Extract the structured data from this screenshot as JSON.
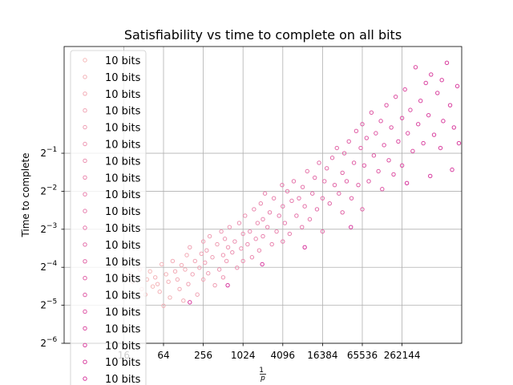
{
  "chart_data": {
    "type": "scatter",
    "title": "Satisfiability vs time to complete on all bits",
    "xlabel": "1/p",
    "ylabel": "Time to complete",
    "x_scale": "log2",
    "y_scale": "log2",
    "xlim": [
      2,
      2097152
    ],
    "ylim": [
      0.015625,
      3.5
    ],
    "x_ticks": [
      {
        "value": 16,
        "label": "16"
      },
      {
        "value": 64,
        "label": "64"
      },
      {
        "value": 256,
        "label": "256"
      },
      {
        "value": 1024,
        "label": "1024"
      },
      {
        "value": 4096,
        "label": "4096"
      },
      {
        "value": 16384,
        "label": "16384"
      },
      {
        "value": 65536,
        "label": "65536"
      },
      {
        "value": 262144,
        "label": "262144"
      }
    ],
    "y_ticks": [
      {
        "value": 0.015625,
        "base": "2",
        "exp": "−6"
      },
      {
        "value": 0.03125,
        "base": "2",
        "exp": "−5"
      },
      {
        "value": 0.0625,
        "base": "2",
        "exp": "−4"
      },
      {
        "value": 0.125,
        "base": "2",
        "exp": "−3"
      },
      {
        "value": 0.25,
        "base": "2",
        "exp": "−2"
      },
      {
        "value": 0.5,
        "base": "2",
        "exp": "−1"
      }
    ],
    "grid": true,
    "legend_position": "upper-left",
    "marker": "hollow-circle",
    "color_low": "#f5b8b8",
    "color_high": "#d6349c",
    "series": [
      {
        "name": "10 bits",
        "points": [
          [
            20,
            0.055
          ],
          [
            22,
            0.048
          ],
          [
            28,
            0.06
          ],
          [
            30,
            0.042
          ],
          [
            34,
            0.038
          ],
          [
            36,
            0.05
          ],
          [
            40,
            0.058
          ],
          [
            44,
            0.044
          ]
        ]
      },
      {
        "name": "10 bits",
        "points": [
          [
            48,
            0.052
          ],
          [
            52,
            0.046
          ],
          [
            56,
            0.04
          ],
          [
            60,
            0.066
          ],
          [
            64,
            0.031
          ],
          [
            70,
            0.055
          ],
          [
            76,
            0.048
          ],
          [
            80,
            0.036
          ]
        ]
      },
      {
        "name": "10 bits",
        "points": [
          [
            88,
            0.07
          ],
          [
            96,
            0.058
          ],
          [
            104,
            0.05
          ],
          [
            112,
            0.042
          ],
          [
            120,
            0.065
          ],
          [
            128,
            0.034
          ],
          [
            136,
            0.06
          ],
          [
            144,
            0.078
          ]
        ]
      },
      {
        "name": "10 bits",
        "points": [
          [
            152,
            0.046
          ],
          [
            160,
            0.09
          ],
          [
            176,
            0.055
          ],
          [
            192,
            0.07
          ],
          [
            208,
            0.038
          ],
          [
            224,
            0.062
          ],
          [
            240,
            0.08
          ],
          [
            256,
            0.05
          ]
        ]
      },
      {
        "name": "10 bits",
        "points": [
          [
            256,
            0.1
          ],
          [
            272,
            0.068
          ],
          [
            288,
            0.085
          ],
          [
            304,
            0.056
          ],
          [
            320,
            0.11
          ],
          [
            352,
            0.075
          ],
          [
            384,
            0.045
          ],
          [
            416,
            0.095
          ]
        ]
      },
      {
        "name": "10 bits",
        "points": [
          [
            448,
            0.06
          ],
          [
            480,
            0.12
          ],
          [
            512,
            0.078
          ],
          [
            512,
            0.052
          ],
          [
            544,
            0.105
          ],
          [
            576,
            0.07
          ],
          [
            608,
            0.09
          ],
          [
            640,
            0.13
          ]
        ]
      },
      {
        "name": "10 bits",
        "points": [
          [
            704,
            0.082
          ],
          [
            768,
            0.1
          ],
          [
            832,
            0.062
          ],
          [
            896,
            0.14
          ],
          [
            960,
            0.088
          ],
          [
            1024,
            0.115
          ],
          [
            1024,
            0.07
          ],
          [
            1100,
            0.16
          ]
        ]
      },
      {
        "name": "10 bits",
        "points": [
          [
            1200,
            0.095
          ],
          [
            1300,
            0.12
          ],
          [
            1400,
            0.075
          ],
          [
            1500,
            0.18
          ],
          [
            1600,
            0.105
          ],
          [
            1700,
            0.14
          ],
          [
            1800,
            0.085
          ],
          [
            1900,
            0.2
          ]
        ]
      },
      {
        "name": "10 bits",
        "points": [
          [
            2048,
            0.11
          ],
          [
            2048,
            0.15
          ],
          [
            2200,
            0.24
          ],
          [
            2400,
            0.13
          ],
          [
            2600,
            0.17
          ],
          [
            2800,
            0.095
          ],
          [
            3000,
            0.22
          ],
          [
            3300,
            0.12
          ]
        ]
      },
      {
        "name": "10 bits",
        "points": [
          [
            3600,
            0.16
          ],
          [
            4000,
            0.28
          ],
          [
            4096,
            0.1
          ],
          [
            4096,
            0.19
          ],
          [
            4400,
            0.14
          ],
          [
            4800,
            0.25
          ],
          [
            5200,
            0.115
          ],
          [
            5600,
            0.21
          ]
        ]
      },
      {
        "name": "10 bits",
        "points": [
          [
            6000,
            0.3
          ],
          [
            6600,
            0.16
          ],
          [
            7200,
            0.22
          ],
          [
            8000,
            0.13
          ],
          [
            8192,
            0.27
          ],
          [
            8800,
            0.19
          ],
          [
            9600,
            0.36
          ],
          [
            10500,
            0.15
          ]
        ]
      },
      {
        "name": "10 bits",
        "points": [
          [
            11500,
            0.24
          ],
          [
            12500,
            0.32
          ],
          [
            13500,
            0.18
          ],
          [
            14500,
            0.42
          ],
          [
            16384,
            0.22
          ],
          [
            16384,
            0.12
          ],
          [
            17500,
            0.3
          ],
          [
            19000,
            0.38
          ]
        ]
      },
      {
        "name": "10 bits",
        "points": [
          [
            21000,
            0.2
          ],
          [
            23000,
            0.46
          ],
          [
            25000,
            0.28
          ],
          [
            27000,
            0.55
          ],
          [
            29000,
            0.24
          ],
          [
            32768,
            0.35
          ],
          [
            32768,
            0.17
          ],
          [
            35000,
            0.5
          ]
        ]
      },
      {
        "name": "10 bits",
        "points": [
          [
            38000,
            0.3
          ],
          [
            41000,
            0.62
          ],
          [
            45000,
            0.22
          ],
          [
            49000,
            0.42
          ],
          [
            53000,
            0.75
          ],
          [
            57000,
            0.28
          ],
          [
            62000,
            0.55
          ],
          [
            65536,
            0.18
          ]
        ]
      },
      {
        "name": "10 bits",
        "points": [
          [
            65536,
            0.85
          ],
          [
            70000,
            0.4
          ],
          [
            76000,
            0.66
          ],
          [
            82000,
            0.3
          ],
          [
            90000,
            1.05
          ],
          [
            98000,
            0.48
          ],
          [
            105000,
            0.72
          ],
          [
            115000,
            0.36
          ]
        ]
      },
      {
        "name": "10 bits",
        "points": [
          [
            125000,
            0.9
          ],
          [
            131072,
            0.26
          ],
          [
            140000,
            0.58
          ],
          [
            152000,
            1.2
          ],
          [
            165000,
            0.44
          ],
          [
            180000,
            0.8
          ],
          [
            195000,
            0.34
          ],
          [
            210000,
            1.4
          ]
        ]
      },
      {
        "name": "10 bits",
        "points": [
          [
            230000,
            0.62
          ],
          [
            262144,
            0.95
          ],
          [
            262144,
            0.4
          ],
          [
            290000,
            1.6
          ],
          [
            320000,
            0.72
          ],
          [
            350000,
            1.1
          ],
          [
            380000,
            0.52
          ],
          [
            420000,
            2.4
          ]
        ]
      },
      {
        "name": "10 bits",
        "points": [
          [
            460000,
            0.85
          ],
          [
            500000,
            1.3
          ],
          [
            550000,
            0.6
          ],
          [
            600000,
            1.8
          ],
          [
            660000,
            1.0
          ],
          [
            720000,
            2.1
          ],
          [
            800000,
            0.7
          ],
          [
            900000,
            1.5
          ]
        ]
      },
      {
        "name": "10 bits",
        "points": [
          [
            1000000,
            0.55
          ],
          [
            1048576,
            1.9
          ],
          [
            1100000,
            0.9
          ],
          [
            1250000,
            2.6
          ],
          [
            1400000,
            1.2
          ],
          [
            1600000,
            0.8
          ],
          [
            1800000,
            1.7
          ],
          [
            1900000,
            0.6
          ]
        ]
      },
      {
        "name": "10 bits",
        "points": [
          [
            310000,
            0.29
          ],
          [
            700000,
            0.33
          ],
          [
            1500000,
            0.37
          ],
          [
            44000,
            0.13
          ],
          [
            8800,
            0.09
          ],
          [
            2000,
            0.066
          ],
          [
            600,
            0.045
          ],
          [
            160,
            0.033
          ]
        ]
      }
    ]
  }
}
